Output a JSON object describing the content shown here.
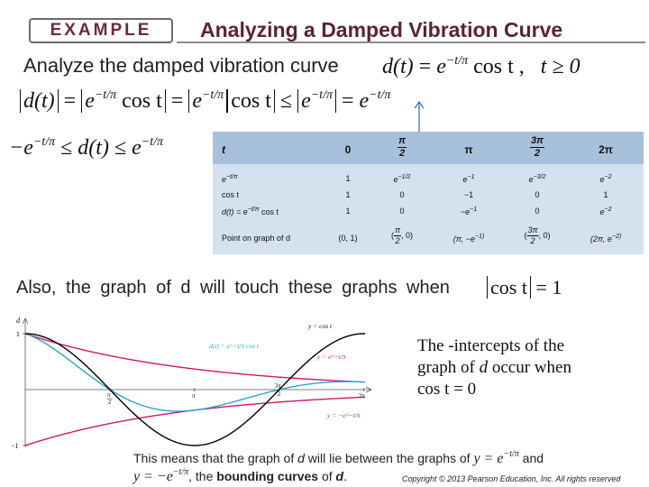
{
  "header": {
    "badge": "EXAMPLE",
    "title": "Analyzing a Damped Vibration Curve"
  },
  "intro": {
    "text": "Analyze the damped vibration curve",
    "d": "d(t)",
    "eq": "=",
    "e": "e",
    "exp": "−t/π",
    "cos": "cos t ,",
    "cond": "t ≥ 0"
  },
  "inequality1": {
    "lhs": "d(t)",
    "eq1": "=",
    "e1": "e",
    "exp1": "−t/π",
    "cos1": "cos t",
    "eq2": "=",
    "e2": "e",
    "exp2": "−t/π",
    "cos2": "cos t",
    "le": "≤",
    "e3": "e",
    "exp3": "−t/π",
    "eq3": "=",
    "e4": "e",
    "exp4": "−t/π"
  },
  "inequality2": {
    "neg": "−e",
    "exp1": "−t/π",
    "le1": "≤",
    "mid": "d(t)",
    "le2": "≤",
    "e": "e",
    "exp2": "−t/π"
  },
  "table": {
    "header_t": "t",
    "header_values": [
      "0",
      "π|2",
      "π",
      "3π|2",
      "2π"
    ],
    "rows": [
      {
        "label": "e^−t/π",
        "values": [
          "1",
          "e^−1/2",
          "e^−1",
          "e^−3/2",
          "e^−2"
        ]
      },
      {
        "label": "cos t",
        "values": [
          "1",
          "0",
          "−1",
          "0",
          "1"
        ]
      },
      {
        "label": "d(t) = e^−t/π cos t",
        "values": [
          "1",
          "0",
          "−e^−1",
          "0",
          "e^−2"
        ]
      }
    ],
    "points_label": "Point on graph of d",
    "points": [
      "(0, 1)",
      "(π|2, 0)",
      "(π, −e^−1)",
      "(3π|2, 0)",
      "(2π, e^−2)"
    ]
  },
  "also": {
    "text": "Also, the graph of d will touch these graphs when",
    "math": "cos t",
    "eq": "= 1"
  },
  "graph": {
    "ylabel": "d",
    "tick_1": "1",
    "tick_m1": "−1",
    "tick_pi2_n": "π",
    "tick_pi2_d": "2",
    "tick_pi": "π",
    "tick_3pi2_n": "3π",
    "tick_3pi2_d": "2",
    "tick_2pi": "2π",
    "label_cos": "y = cos t",
    "label_d": "d(t) = e^−t/π cos t",
    "label_env": "y = e^−t/π",
    "label_negenv": "y = −e^−t/π",
    "colors": {
      "d": "#000000",
      "cos": "#2aa6c8",
      "envelope": "#d3166a"
    }
  },
  "note": {
    "line1": "The -intercepts of the",
    "line2a": "graph of ",
    "line2b": "d",
    "line2c": " occur when",
    "line3": "cos t  = 0"
  },
  "bottom": {
    "line1a": "This means that the graph of ",
    "line1b": "d",
    "line1c": " will lie between the graphs of ",
    "line1d": "y = e",
    "line1e": "−t/π",
    "line1f": " and",
    "line2a": "y = −e",
    "line2b": "−t/π",
    "line2c": ", the ",
    "line2d": "bounding curves",
    "line2e": " of ",
    "line2f": "d",
    "line2g": "."
  },
  "copyright": "Copyright © 2013 Pearson Education, Inc. All rights reserved"
}
